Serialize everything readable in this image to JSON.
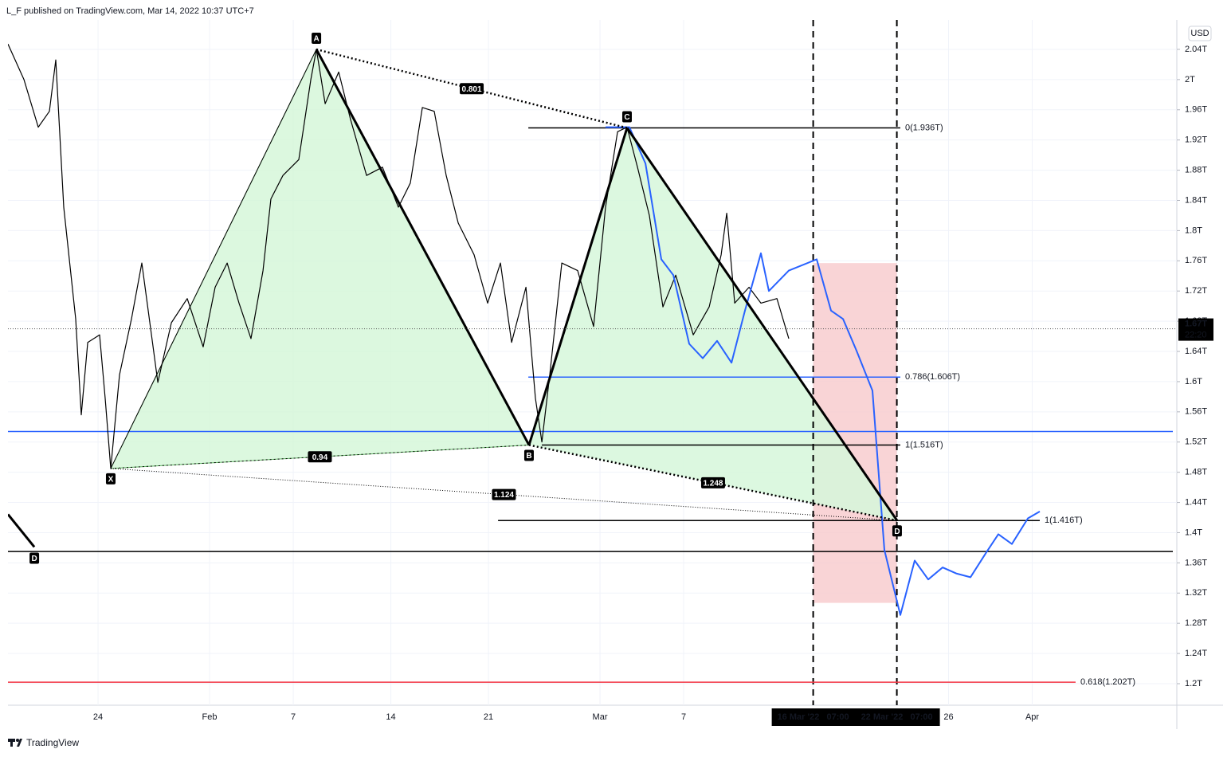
{
  "chart_data": {
    "type": "line",
    "header": "L_F published on TradingView.com, Mar 14, 2022 10:37 UTC+7",
    "currency": "USD",
    "footer": "TradingView",
    "xlim": [
      17.54,
      101.37
    ],
    "ylim": [
      1.1715,
      2.079
    ],
    "grid": true,
    "xticks": [
      {
        "value": 24,
        "label": "24"
      },
      {
        "value": 32,
        "label": "Feb"
      },
      {
        "value": 38,
        "label": "7"
      },
      {
        "value": 45,
        "label": "14"
      },
      {
        "value": 52,
        "label": "21"
      },
      {
        "value": 60,
        "label": "Mar"
      },
      {
        "value": 66,
        "label": "7"
      },
      {
        "value": 75.29,
        "label": "16 Mar '22   07:00"
      },
      {
        "value": 81.29,
        "label": "22 Mar '22   07:00"
      },
      {
        "value": 85,
        "label": "26"
      },
      {
        "value": 91,
        "label": "Apr"
      }
    ],
    "yticks": [
      {
        "value": 1.2,
        "label": "1.2T"
      },
      {
        "value": 1.24,
        "label": "1.24T"
      },
      {
        "value": 1.28,
        "label": "1.28T"
      },
      {
        "value": 1.32,
        "label": "1.32T"
      },
      {
        "value": 1.36,
        "label": "1.36T"
      },
      {
        "value": 1.4,
        "label": "1.4T"
      },
      {
        "value": 1.44,
        "label": "1.44T"
      },
      {
        "value": 1.48,
        "label": "1.48T"
      },
      {
        "value": 1.52,
        "label": "1.52T"
      },
      {
        "value": 1.56,
        "label": "1.56T"
      },
      {
        "value": 1.6,
        "label": "1.6T"
      },
      {
        "value": 1.64,
        "label": "1.64T"
      },
      {
        "value": 1.68,
        "label": "1.68T"
      },
      {
        "value": 1.72,
        "label": "1.72T"
      },
      {
        "value": 1.76,
        "label": "1.76T"
      },
      {
        "value": 1.8,
        "label": "1.8T"
      },
      {
        "value": 1.84,
        "label": "1.84T"
      },
      {
        "value": 1.88,
        "label": "1.88T"
      },
      {
        "value": 1.92,
        "label": "1.92T"
      },
      {
        "value": 1.96,
        "label": "1.96T"
      },
      {
        "value": 2,
        "label": "2T"
      },
      {
        "value": 2.04,
        "label": "2.04T"
      }
    ],
    "series": [
      {
        "color": "#000000",
        "x": [
          17.54,
          18.69,
          19.71,
          20.51,
          20.97,
          21.54,
          22.4,
          22.8,
          23.26,
          24.11,
          24.51,
          24.91,
          25.54,
          26.4,
          27.14,
          27.83,
          28.29,
          29.26,
          30.4,
          31.54,
          32.4,
          33.26,
          34.11,
          34.97,
          35.83,
          36.4,
          37.26,
          38.4,
          39.26,
          39.66,
          40.29,
          41.26,
          42.11,
          43.26,
          44.4,
          45.54,
          46.4,
          47.26,
          48.11,
          48.97,
          49.83,
          50.97,
          51.94,
          52.86,
          53.66,
          54.69,
          55.37,
          55.83,
          56.4,
          57.26,
          58.4,
          59.54,
          60.4,
          61.26,
          61.94,
          62.69,
          63.54,
          64.51,
          65.43,
          66.69,
          67.83,
          68.69,
          69.09,
          69.66,
          70.69,
          71.54,
          72.69,
          73.54
        ],
        "values": [
          2.047,
          2.0,
          1.937,
          1.958,
          2.026,
          1.831,
          1.683,
          1.556,
          1.652,
          1.662,
          1.578,
          1.485,
          1.609,
          1.683,
          1.757,
          1.662,
          1.599,
          1.678,
          1.71,
          1.646,
          1.725,
          1.757,
          1.704,
          1.657,
          1.747,
          1.842,
          1.873,
          1.894,
          2.0,
          2.04,
          1.968,
          2.01,
          1.947,
          1.873,
          1.884,
          1.831,
          1.863,
          1.963,
          1.958,
          1.873,
          1.81,
          1.768,
          1.704,
          1.757,
          1.652,
          1.725,
          1.578,
          1.52,
          1.609,
          1.757,
          1.747,
          1.673,
          1.831,
          1.931,
          1.937,
          1.884,
          1.82,
          1.699,
          1.741,
          1.662,
          1.699,
          1.768,
          1.823,
          1.704,
          1.725,
          1.704,
          1.71,
          1.657
        ]
      },
      {
        "color": "#2962ff",
        "x": [
          60.4,
          62.11,
          63.26,
          64.4,
          65.26,
          66.4,
          67.37,
          68.4,
          69.43,
          70.4,
          71.54,
          72.11,
          73.54,
          75.54,
          76.57,
          77.43,
          78.4,
          79.54,
          80.4,
          81.54,
          82.57,
          83.54,
          84.57,
          85.54,
          86.57,
          87.71,
          88.57,
          89.54,
          90.69,
          91.54
        ],
        "values": [
          1.937,
          1.937,
          1.889,
          1.762,
          1.741,
          1.65,
          1.631,
          1.654,
          1.625,
          1.694,
          1.77,
          1.72,
          1.747,
          1.762,
          1.694,
          1.683,
          1.641,
          1.588,
          1.377,
          1.291,
          1.363,
          1.338,
          1.354,
          1.346,
          1.341,
          1.374,
          1.398,
          1.385,
          1.419,
          1.428
        ]
      }
    ],
    "pattern": {
      "points": [
        {
          "label": "X",
          "x": 24.91,
          "y": 1.485
        },
        {
          "label": "A",
          "x": 39.66,
          "y": 2.04
        },
        {
          "label": "B",
          "x": 54.91,
          "y": 1.516
        },
        {
          "label": "C",
          "x": 61.94,
          "y": 1.936
        },
        {
          "label": "D",
          "x": 81.31,
          "y": 1.416
        }
      ],
      "ratios": [
        "0.801",
        "0.94",
        "1.124",
        "1.248"
      ],
      "fill": "#d6f7da"
    },
    "prior_point": {
      "label": "D",
      "x": 19.43,
      "y": 1.381
    },
    "levels": [
      {
        "label": "0(1.936T)",
        "value": 1.936,
        "xlim": [
          54.86,
          81.54
        ],
        "color": "#000000"
      },
      {
        "label": "0.786(1.606T)",
        "value": 1.606,
        "xlim": [
          54.86,
          81.54
        ],
        "color": "#2962ff"
      },
      {
        "label": "1(1.516T)",
        "value": 1.516,
        "xlim": [
          55.83,
          81.54
        ],
        "color": "#000000"
      },
      {
        "label": "1(1.416T)",
        "value": 1.416,
        "xlim": [
          52.69,
          91.54
        ],
        "color": "#000000"
      },
      {
        "label": "0.618(1.202T)",
        "value": 1.202,
        "xlim": [
          17.54,
          94.11
        ],
        "color": "#f23645"
      }
    ],
    "hlines": [
      {
        "value": 1.534,
        "color": "#2962ff"
      },
      {
        "value": 1.375,
        "color": "#000000"
      }
    ],
    "zone": {
      "x": [
        75.29,
        81.29
      ],
      "y": [
        1.307,
        1.757
      ],
      "color": "#f8c9cc"
    },
    "last_price": {
      "value": 1.67,
      "label": "1.67T",
      "countdown": "22:20"
    }
  }
}
